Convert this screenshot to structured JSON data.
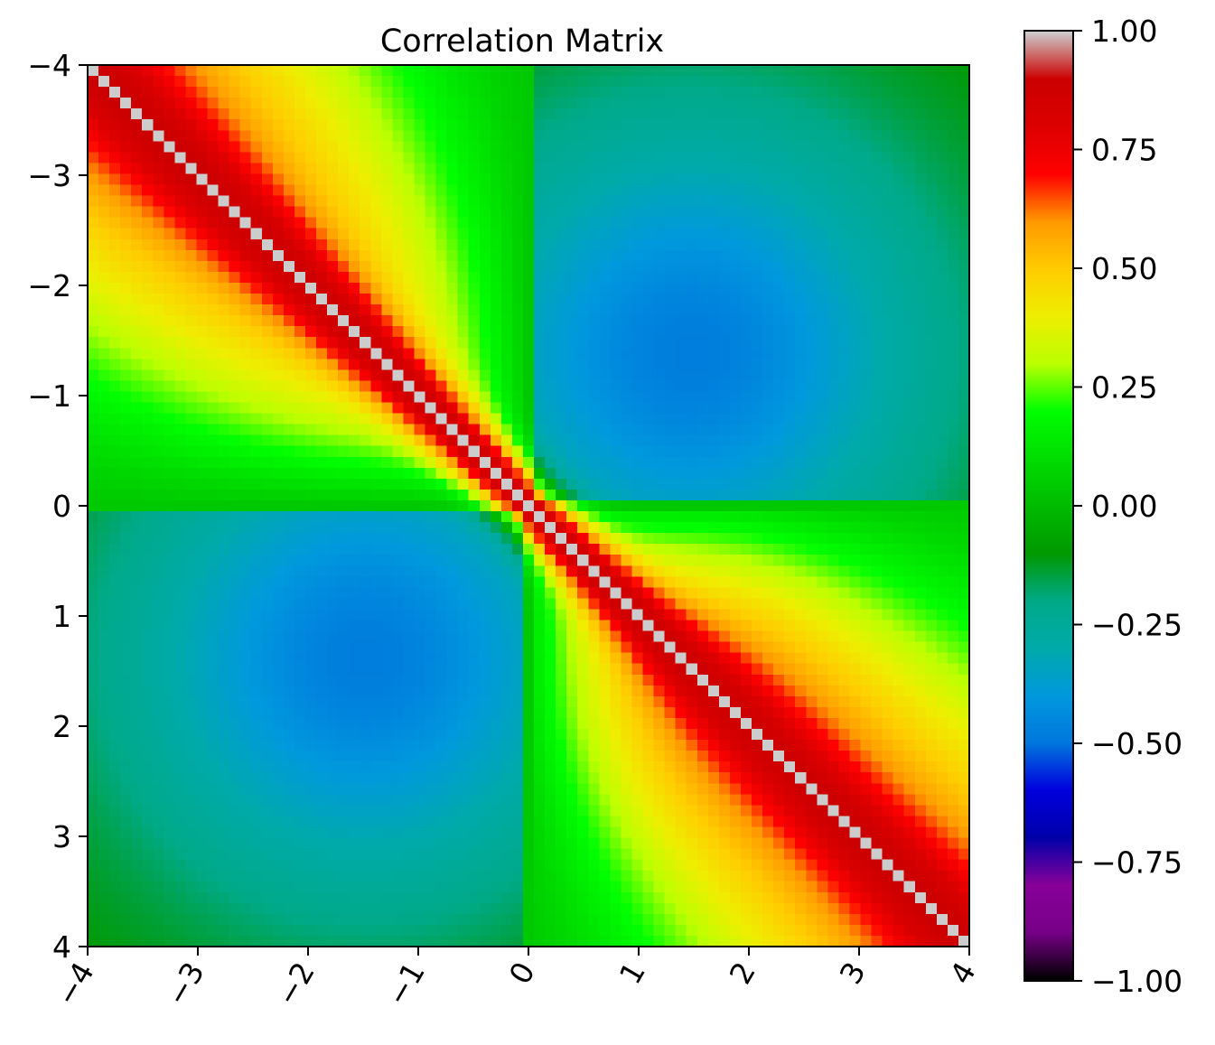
{
  "chart_data": {
    "type": "heatmap",
    "title": "Correlation Matrix",
    "xlabel": "",
    "ylabel": "",
    "x_range": [
      -4,
      4
    ],
    "y_range": [
      -4,
      4
    ],
    "y_inverted": true,
    "grid_resolution": 81,
    "x_ticks": [
      -4,
      -3,
      -2,
      -1,
      0,
      1,
      2,
      3,
      4
    ],
    "x_tick_labels": [
      "−4",
      "−3",
      "−2",
      "−1",
      "0",
      "1",
      "2",
      "3",
      "4"
    ],
    "y_ticks": [
      -4,
      -3,
      -2,
      -1,
      0,
      1,
      2,
      3,
      4
    ],
    "y_tick_labels": [
      "−4",
      "−3",
      "−2",
      "−1",
      "0",
      "1",
      "2",
      "3",
      "4"
    ],
    "x_tick_rotation_deg": 60,
    "diagonal_value": 1.0,
    "sample_values": [
      {
        "x": 1.4,
        "y": -1.5,
        "value": -0.48
      },
      {
        "x": -1.5,
        "y": 1.3,
        "value": -0.48
      },
      {
        "x": 1.5,
        "y": 1.5,
        "value": 0.75
      },
      {
        "x": -2.0,
        "y": -2.0,
        "value": 0.6
      },
      {
        "x": 0.1,
        "y": 2.5,
        "value": -0.08
      },
      {
        "x": 2.5,
        "y": 0.05,
        "value": -0.08
      },
      {
        "x": -4,
        "y": 4,
        "value": -0.25
      },
      {
        "x": 4,
        "y": -4,
        "value": -0.25
      }
    ],
    "colorbar": {
      "colormap": "nipy_spectral",
      "vmin": -1.0,
      "vmax": 1.0,
      "ticks": [
        1.0,
        0.75,
        0.5,
        0.25,
        0.0,
        -0.25,
        -0.5,
        -0.75,
        -1.0
      ],
      "tick_labels": [
        "1.00",
        "0.75",
        "0.50",
        "0.25",
        "0.00",
        "−0.25",
        "−0.50",
        "−0.75",
        "−1.00"
      ]
    }
  }
}
